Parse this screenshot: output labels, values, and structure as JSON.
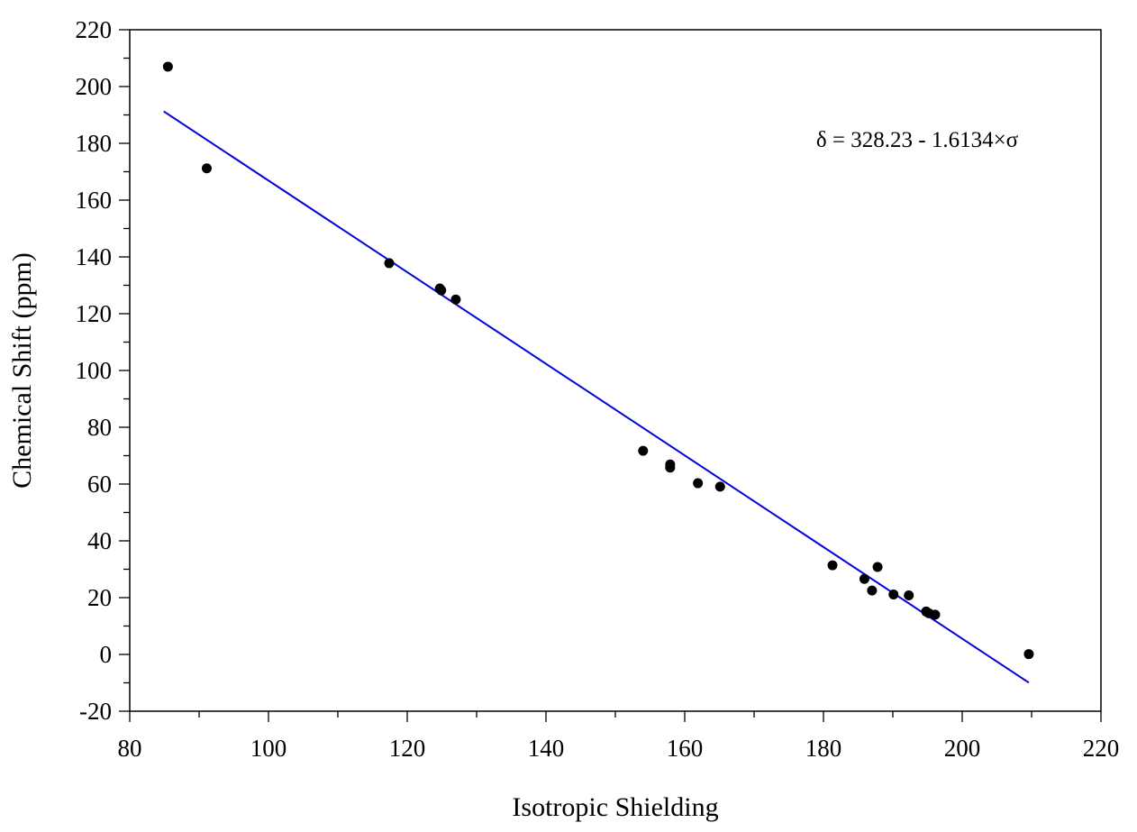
{
  "chart_data": {
    "type": "scatter",
    "title": "",
    "xlabel": "Isotropic Shielding",
    "ylabel": "Chemical Shift (ppm)",
    "xlim": [
      80,
      220
    ],
    "ylim": [
      -20,
      220
    ],
    "x_ticks": [
      80,
      100,
      120,
      140,
      160,
      180,
      200,
      220
    ],
    "y_ticks": [
      -20,
      0,
      20,
      40,
      60,
      80,
      100,
      120,
      140,
      160,
      180,
      200,
      220
    ],
    "x_minor_step": 10,
    "y_minor_step": 10,
    "grid": false,
    "annotation": "δ = 328.23 - 1.6134×σ",
    "series": [
      {
        "type": "scatter",
        "color": "#000000",
        "points": [
          [
            85.5,
            207.0
          ],
          [
            91.1,
            171.2
          ],
          [
            117.4,
            137.8
          ],
          [
            124.7,
            128.9
          ],
          [
            124.9,
            128.2
          ],
          [
            127.0,
            125.0
          ],
          [
            154.0,
            71.7
          ],
          [
            157.9,
            66.9
          ],
          [
            157.9,
            65.8
          ],
          [
            161.9,
            60.3
          ],
          [
            165.1,
            59.1
          ],
          [
            181.3,
            31.4
          ],
          [
            185.9,
            26.6
          ],
          [
            187.0,
            22.5
          ],
          [
            187.8,
            30.8
          ],
          [
            190.1,
            21.1
          ],
          [
            192.3,
            20.8
          ],
          [
            194.8,
            15.1
          ],
          [
            195.2,
            14.5
          ],
          [
            196.1,
            14.0
          ],
          [
            209.6,
            0.1
          ]
        ]
      },
      {
        "type": "line",
        "color": "#0000dd",
        "intercept": 328.23,
        "slope": -1.6134,
        "x_range": [
          84.9,
          209.6
        ]
      }
    ]
  }
}
